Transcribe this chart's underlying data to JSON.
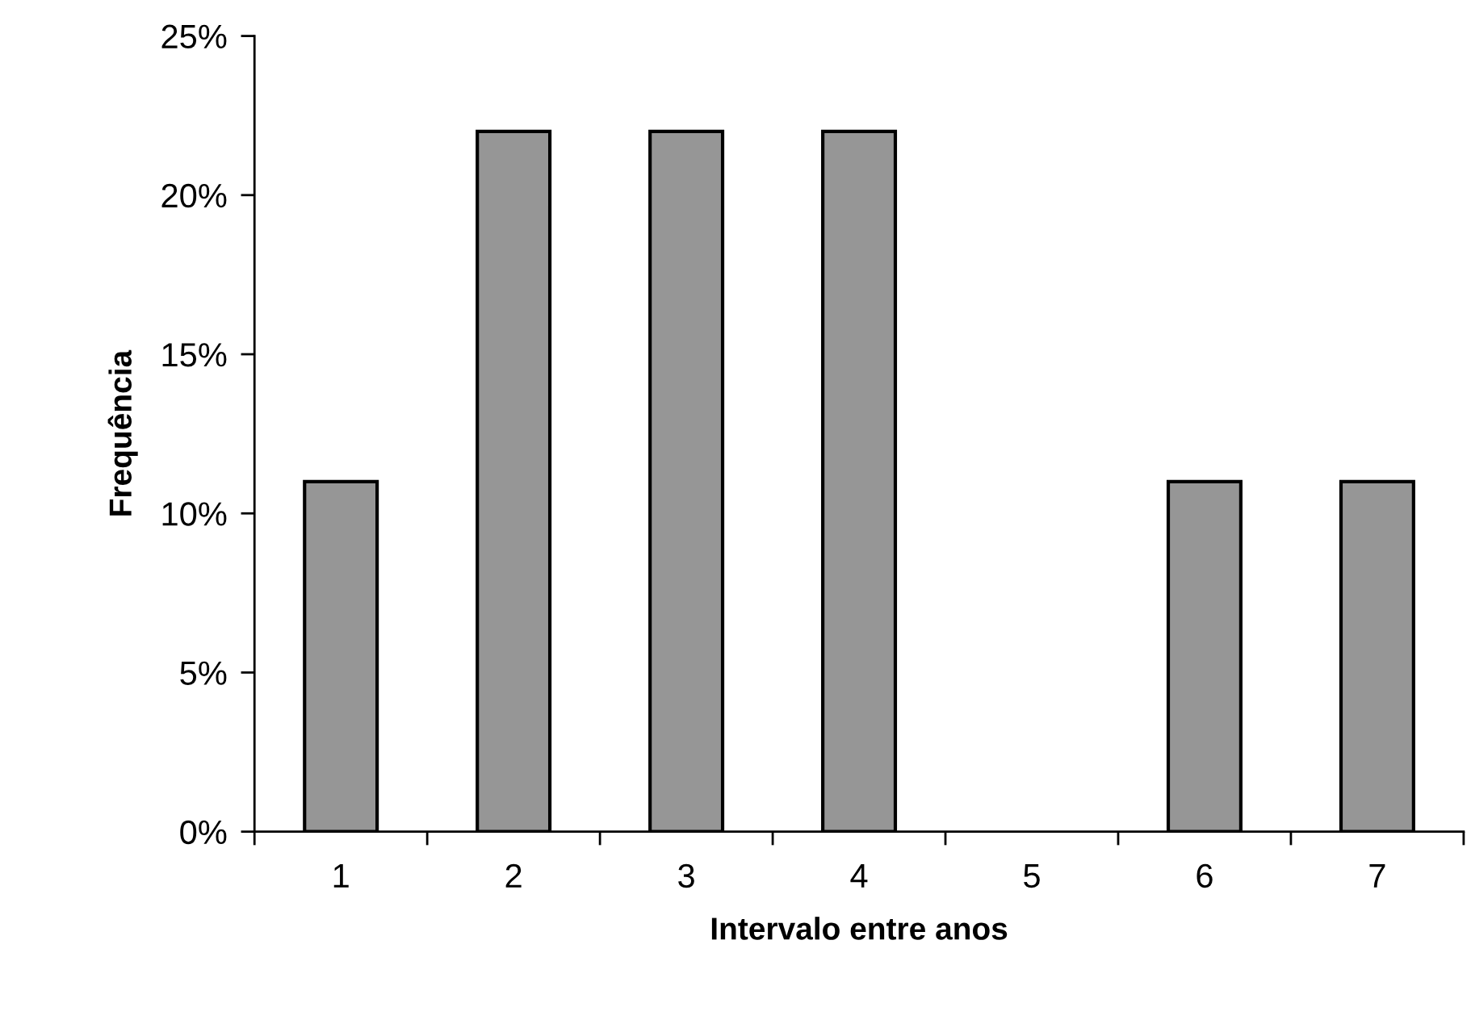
{
  "chart_data": {
    "type": "bar",
    "xlabel": "Intervalo entre anos",
    "ylabel": "Frequência",
    "categories": [
      "1",
      "2",
      "3",
      "4",
      "5",
      "6",
      "7"
    ],
    "values": [
      11,
      22,
      22,
      22,
      0,
      11,
      11
    ],
    "color": "#969696",
    "ylim": [
      0,
      25
    ],
    "yticks": [
      {
        "value": 0,
        "label": "0%"
      },
      {
        "value": 5,
        "label": "5%"
      },
      {
        "value": 10,
        "label": "10%"
      },
      {
        "value": 15,
        "label": "15%"
      },
      {
        "value": 20,
        "label": "20%"
      },
      {
        "value": 25,
        "label": "25%"
      }
    ],
    "grid": false,
    "legend": false
  }
}
